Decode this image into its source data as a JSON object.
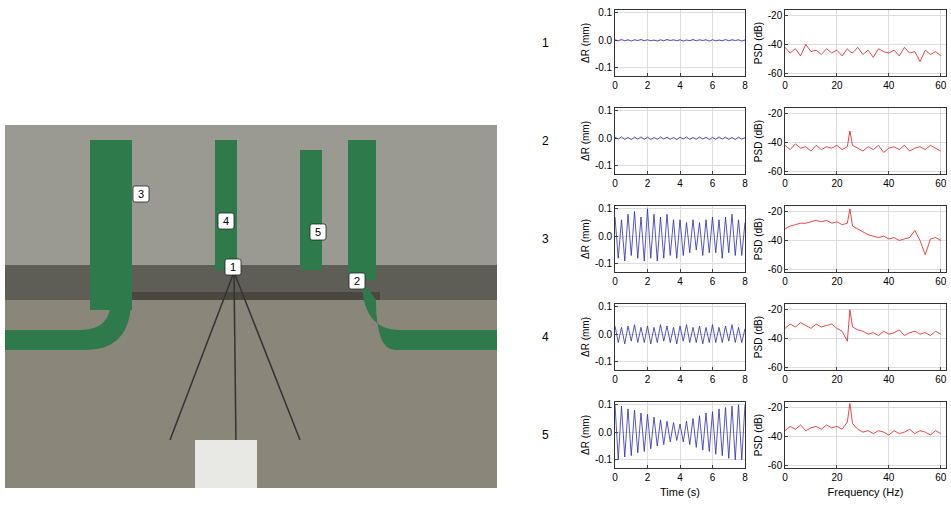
{
  "photo": {
    "markers": [
      "1",
      "2",
      "3",
      "4",
      "5"
    ]
  },
  "chart_data": [
    {
      "type": "line",
      "row_label": "1",
      "y_label": "ΔR (mm)",
      "color": "#2b2bb0",
      "grid": true,
      "xlim": [
        0,
        8
      ],
      "xticks": [
        0,
        2,
        4,
        6,
        8
      ],
      "ylim": [
        -0.13,
        0.11
      ],
      "yticks": [
        -0.1,
        {
          "value": 0,
          "label": "0.0"
        },
        0.1
      ],
      "x": [
        0,
        0.2,
        0.4,
        0.6,
        0.8,
        1,
        1.2,
        1.4,
        1.6,
        1.8,
        2,
        2.2,
        2.4,
        2.6,
        2.8,
        3,
        3.2,
        3.4,
        3.6,
        3.8,
        4,
        4.2,
        4.4,
        4.6,
        4.8,
        5,
        5.2,
        5.4,
        5.6,
        5.8,
        6,
        6.2,
        6.4,
        6.6,
        6.8,
        7,
        7.2,
        7.4,
        7.6,
        7.8,
        8
      ],
      "values": [
        0.002,
        -0.002,
        0.003,
        -0.002,
        0.002,
        -0.003,
        0.002,
        -0.001,
        0.003,
        -0.002,
        0.002,
        -0.002,
        0.001,
        -0.003,
        0.002,
        -0.002,
        0.003,
        -0.001,
        0.002,
        -0.002,
        0.002,
        -0.003,
        0.001,
        -0.002,
        0.003,
        -0.002,
        0.002,
        -0.001,
        0.002,
        -0.003,
        0.002,
        -0.002,
        0.001,
        -0.002,
        0.003,
        -0.002,
        0.002,
        -0.001,
        0.002,
        -0.003,
        0.001
      ]
    },
    {
      "type": "line",
      "y_label": "PSD (dB)",
      "color": "#e31a1a",
      "grid": true,
      "xlim": [
        0,
        62
      ],
      "xticks": [
        0,
        20,
        40,
        60
      ],
      "ylim": [
        -62,
        -16
      ],
      "yticks": [
        -60,
        -40,
        -20
      ],
      "x": [
        0,
        2,
        4,
        6,
        8,
        10,
        12,
        14,
        16,
        18,
        20,
        22,
        24,
        25,
        26,
        28,
        30,
        32,
        34,
        36,
        38,
        40,
        42,
        44,
        46,
        48,
        50,
        52,
        54,
        56,
        58,
        60
      ],
      "values": [
        -42,
        -46,
        -43,
        -48,
        -40,
        -45,
        -44,
        -47,
        -43,
        -46,
        -44,
        -48,
        -43,
        -45,
        -46,
        -42,
        -47,
        -44,
        -49,
        -43,
        -45,
        -46,
        -44,
        -48,
        -42,
        -46,
        -45,
        -52,
        -44,
        -47,
        -45,
        -48
      ]
    },
    {
      "type": "line",
      "row_label": "2",
      "y_label": "ΔR (mm)",
      "color": "#2b2bb0",
      "grid": true,
      "xlim": [
        0,
        8
      ],
      "xticks": [
        0,
        2,
        4,
        6,
        8
      ],
      "ylim": [
        -0.13,
        0.11
      ],
      "yticks": [
        -0.1,
        {
          "value": 0,
          "label": "0.0"
        },
        0.1
      ],
      "x": [
        0,
        0.2,
        0.4,
        0.6,
        0.8,
        1,
        1.2,
        1.4,
        1.6,
        1.8,
        2,
        2.2,
        2.4,
        2.6,
        2.8,
        3,
        3.2,
        3.4,
        3.6,
        3.8,
        4,
        4.2,
        4.4,
        4.6,
        4.8,
        5,
        5.2,
        5.4,
        5.6,
        5.8,
        6,
        6.2,
        6.4,
        6.6,
        6.8,
        7,
        7.2,
        7.4,
        7.6,
        7.8,
        8
      ],
      "values": [
        0.004,
        -0.003,
        0.005,
        -0.004,
        0.003,
        -0.005,
        0.004,
        -0.003,
        0.005,
        -0.004,
        0.004,
        -0.005,
        0.003,
        -0.004,
        0.005,
        -0.003,
        0.004,
        -0.004,
        0.003,
        -0.005,
        0.004,
        -0.003,
        0.005,
        -0.004,
        0.003,
        -0.004,
        0.005,
        -0.003,
        0.004,
        -0.005,
        0.003,
        -0.004,
        0.005,
        -0.003,
        0.004,
        -0.004,
        0.003,
        -0.005,
        0.004,
        -0.003,
        0.002
      ]
    },
    {
      "type": "line",
      "y_label": "PSD (dB)",
      "color": "#e31a1a",
      "grid": true,
      "xlim": [
        0,
        62
      ],
      "xticks": [
        0,
        20,
        40,
        60
      ],
      "ylim": [
        -62,
        -16
      ],
      "yticks": [
        -60,
        -40,
        -20
      ],
      "x": [
        0,
        2,
        4,
        6,
        8,
        10,
        12,
        14,
        16,
        18,
        20,
        22,
        24,
        25,
        26,
        28,
        30,
        32,
        34,
        36,
        38,
        40,
        42,
        44,
        46,
        48,
        50,
        52,
        54,
        56,
        58,
        60
      ],
      "values": [
        -42,
        -45,
        -41,
        -44,
        -43,
        -46,
        -42,
        -45,
        -43,
        -44,
        -42,
        -45,
        -43,
        -32,
        -42,
        -44,
        -46,
        -43,
        -45,
        -42,
        -47,
        -44,
        -43,
        -45,
        -42,
        -46,
        -44,
        -43,
        -45,
        -42,
        -44,
        -46
      ]
    },
    {
      "type": "line",
      "row_label": "3",
      "y_label": "ΔR (mm)",
      "color": "#2b2bb0",
      "grid": true,
      "xlim": [
        0,
        8
      ],
      "xticks": [
        0,
        2,
        4,
        6,
        8
      ],
      "ylim": [
        -0.13,
        0.11
      ],
      "yticks": [
        -0.1,
        {
          "value": 0,
          "label": "0.0"
        },
        0.1
      ],
      "x": [
        0,
        0.2,
        0.4,
        0.6,
        0.8,
        1,
        1.2,
        1.4,
        1.6,
        1.8,
        2,
        2.2,
        2.4,
        2.6,
        2.8,
        3,
        3.2,
        3.4,
        3.6,
        3.8,
        4,
        4.2,
        4.4,
        4.6,
        4.8,
        5,
        5.2,
        5.4,
        5.6,
        5.8,
        6,
        6.2,
        6.4,
        6.6,
        6.8,
        7,
        7.2,
        7.4,
        7.6,
        7.8,
        8
      ],
      "values": [
        0.07,
        -0.08,
        0.06,
        -0.09,
        0.08,
        -0.07,
        0.09,
        -0.08,
        0.07,
        -0.09,
        0.1,
        -0.08,
        0.08,
        -0.09,
        0.07,
        -0.08,
        0.08,
        -0.07,
        0.06,
        -0.08,
        0.06,
        -0.07,
        0.05,
        -0.06,
        0.06,
        -0.05,
        0.05,
        -0.07,
        0.06,
        -0.06,
        0.07,
        -0.06,
        0.06,
        -0.08,
        0.07,
        -0.06,
        0.08,
        -0.07,
        0.06,
        -0.07,
        0.05
      ]
    },
    {
      "type": "line",
      "y_label": "PSD (dB)",
      "color": "#e31a1a",
      "grid": true,
      "xlim": [
        0,
        62
      ],
      "xticks": [
        0,
        20,
        40,
        60
      ],
      "ylim": [
        -62,
        -16
      ],
      "yticks": [
        -60,
        -40,
        -20
      ],
      "x": [
        0,
        2,
        4,
        6,
        8,
        10,
        12,
        14,
        16,
        18,
        20,
        22,
        24,
        25,
        26,
        28,
        30,
        32,
        34,
        36,
        38,
        40,
        42,
        44,
        46,
        48,
        50,
        52,
        54,
        56,
        58,
        60
      ],
      "values": [
        -32,
        -30,
        -29,
        -28,
        -28,
        -27,
        -26,
        -27,
        -26,
        -28,
        -27,
        -29,
        -28,
        -18,
        -30,
        -32,
        -34,
        -36,
        -37,
        -38,
        -37,
        -39,
        -38,
        -40,
        -39,
        -38,
        -33,
        -40,
        -50,
        -39,
        -38,
        -40
      ]
    },
    {
      "type": "line",
      "row_label": "4",
      "y_label": "ΔR (mm)",
      "color": "#2b2bb0",
      "grid": true,
      "xlim": [
        0,
        8
      ],
      "xticks": [
        0,
        2,
        4,
        6,
        8
      ],
      "ylim": [
        -0.13,
        0.11
      ],
      "yticks": [
        -0.1,
        {
          "value": 0,
          "label": "0.0"
        },
        0.1
      ],
      "x": [
        0,
        0.2,
        0.4,
        0.6,
        0.8,
        1,
        1.2,
        1.4,
        1.6,
        1.8,
        2,
        2.2,
        2.4,
        2.6,
        2.8,
        3,
        3.2,
        3.4,
        3.6,
        3.8,
        4,
        4.2,
        4.4,
        4.6,
        4.8,
        5,
        5.2,
        5.4,
        5.6,
        5.8,
        6,
        6.2,
        6.4,
        6.6,
        6.8,
        7,
        7.2,
        7.4,
        7.6,
        7.8,
        8
      ],
      "values": [
        0.03,
        -0.03,
        0.025,
        -0.035,
        0.03,
        -0.025,
        0.035,
        -0.03,
        0.025,
        -0.03,
        0.03,
        -0.035,
        0.025,
        -0.03,
        0.035,
        -0.025,
        0.03,
        -0.03,
        0.025,
        -0.035,
        0.03,
        -0.025,
        0.035,
        -0.03,
        0.025,
        -0.03,
        0.03,
        -0.035,
        0.025,
        -0.03,
        0.035,
        -0.03,
        0.025,
        -0.03,
        0.03,
        -0.025,
        0.035,
        -0.03,
        0.025,
        -0.03,
        0.02
      ]
    },
    {
      "type": "line",
      "y_label": "PSD (dB)",
      "color": "#e31a1a",
      "grid": true,
      "xlim": [
        0,
        62
      ],
      "xticks": [
        0,
        20,
        40,
        60
      ],
      "ylim": [
        -62,
        -16
      ],
      "yticks": [
        -60,
        -40,
        -20
      ],
      "x": [
        0,
        2,
        4,
        6,
        8,
        10,
        12,
        14,
        16,
        18,
        20,
        22,
        24,
        25,
        26,
        28,
        30,
        32,
        34,
        36,
        38,
        40,
        42,
        44,
        46,
        48,
        50,
        52,
        54,
        56,
        58,
        60
      ],
      "values": [
        -33,
        -30,
        -32,
        -29,
        -31,
        -33,
        -30,
        -32,
        -31,
        -30,
        -33,
        -35,
        -42,
        -20,
        -32,
        -34,
        -35,
        -37,
        -36,
        -38,
        -35,
        -37,
        -36,
        -34,
        -38,
        -36,
        -35,
        -37,
        -36,
        -38,
        -35,
        -37
      ]
    },
    {
      "type": "line",
      "row_label": "5",
      "y_label": "ΔR (mm)",
      "x_label": "Time (s)",
      "color": "#2b2bb0",
      "grid": true,
      "xlim": [
        0,
        8
      ],
      "xticks": [
        0,
        2,
        4,
        6,
        8
      ],
      "ylim": [
        -0.13,
        0.11
      ],
      "yticks": [
        -0.1,
        {
          "value": 0,
          "label": "0.0"
        },
        0.1
      ],
      "x": [
        0,
        0.2,
        0.4,
        0.6,
        0.8,
        1,
        1.2,
        1.4,
        1.6,
        1.8,
        2,
        2.2,
        2.4,
        2.6,
        2.8,
        3,
        3.2,
        3.4,
        3.6,
        3.8,
        4,
        4.2,
        4.4,
        4.6,
        4.8,
        5,
        5.2,
        5.4,
        5.6,
        5.8,
        6,
        6.2,
        6.4,
        6.6,
        6.8,
        7,
        7.2,
        7.4,
        7.6,
        7.8,
        8
      ],
      "values": [
        0.1,
        -0.1,
        0.095,
        -0.09,
        0.085,
        -0.085,
        0.08,
        -0.075,
        0.07,
        -0.07,
        0.065,
        -0.06,
        0.055,
        -0.05,
        0.045,
        -0.045,
        0.04,
        -0.035,
        0.035,
        -0.03,
        0.03,
        -0.035,
        0.04,
        -0.045,
        0.05,
        -0.055,
        0.06,
        -0.065,
        0.07,
        -0.07,
        0.075,
        -0.08,
        0.085,
        -0.085,
        0.09,
        -0.095,
        0.095,
        -0.1,
        0.1,
        -0.1,
        0.1
      ]
    },
    {
      "type": "line",
      "y_label": "PSD (dB)",
      "x_label": "Frequency (Hz)",
      "color": "#e31a1a",
      "grid": true,
      "xlim": [
        0,
        62
      ],
      "xticks": [
        0,
        20,
        40,
        60
      ],
      "ylim": [
        -62,
        -16
      ],
      "yticks": [
        -60,
        -40,
        -20
      ],
      "x": [
        0,
        2,
        4,
        6,
        8,
        10,
        12,
        14,
        16,
        18,
        20,
        22,
        24,
        25,
        26,
        28,
        30,
        32,
        34,
        36,
        38,
        40,
        42,
        44,
        46,
        48,
        50,
        52,
        54,
        56,
        58,
        60
      ],
      "values": [
        -36,
        -33,
        -35,
        -32,
        -36,
        -34,
        -33,
        -35,
        -32,
        -34,
        -33,
        -35,
        -30,
        -17,
        -31,
        -35,
        -37,
        -36,
        -38,
        -36,
        -37,
        -39,
        -36,
        -38,
        -37,
        -35,
        -38,
        -36,
        -37,
        -39,
        -36,
        -38
      ]
    }
  ]
}
